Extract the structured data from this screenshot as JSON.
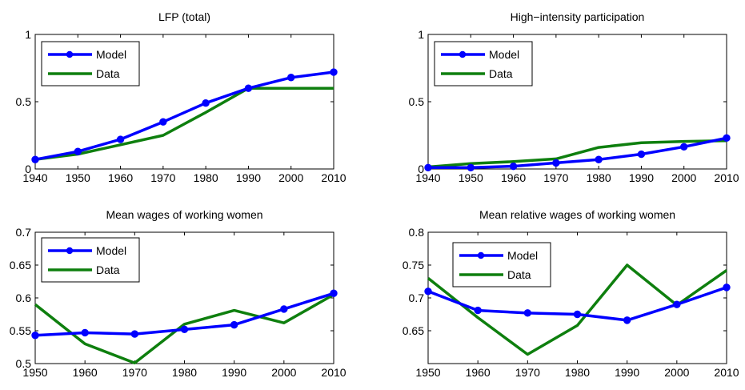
{
  "colors": {
    "model": "#0000ff",
    "data": "#0e7f0e",
    "axis": "#000000",
    "background": "#ffffff"
  },
  "legend": {
    "model_label": "Model",
    "data_label": "Data"
  },
  "chart_data": [
    {
      "type": "line",
      "title": "LFP (total)",
      "x": [
        1940,
        1950,
        1960,
        1970,
        1980,
        1990,
        2000,
        2010
      ],
      "xlim": [
        1940,
        2010
      ],
      "ylim": [
        0,
        1
      ],
      "xticks": [
        "1940",
        "1950",
        "1960",
        "1970",
        "1980",
        "1990",
        "2000",
        "2010"
      ],
      "xtick_values": [
        1940,
        1950,
        1960,
        1970,
        1980,
        1990,
        2000,
        2010
      ],
      "yticks": [
        "0",
        "0.5",
        "1"
      ],
      "ytick_values": [
        0,
        0.5,
        1
      ],
      "legend_position": "top-left",
      "grid": false,
      "series": [
        {
          "name": "Model",
          "marker": true,
          "x": [
            1940,
            1950,
            1960,
            1970,
            1980,
            1990,
            2000,
            2010
          ],
          "values": [
            0.07,
            0.13,
            0.22,
            0.35,
            0.49,
            0.6,
            0.68,
            0.72
          ]
        },
        {
          "name": "Data",
          "marker": false,
          "x": [
            1940,
            1950,
            1960,
            1970,
            1980,
            1990,
            2000,
            2010
          ],
          "values": [
            0.07,
            0.11,
            0.18,
            0.25,
            0.42,
            0.6,
            0.6,
            0.6
          ]
        }
      ]
    },
    {
      "type": "line",
      "title": "High−intensity participation",
      "x": [
        1940,
        1950,
        1960,
        1970,
        1980,
        1990,
        2000,
        2010
      ],
      "xlim": [
        1940,
        2010
      ],
      "ylim": [
        0,
        1
      ],
      "xticks": [
        "1940",
        "1950",
        "1960",
        "1970",
        "1980",
        "1990",
        "2000",
        "2010"
      ],
      "xtick_values": [
        1940,
        1950,
        1960,
        1970,
        1980,
        1990,
        2000,
        2010
      ],
      "yticks": [
        "0",
        "0.5",
        "1"
      ],
      "ytick_values": [
        0,
        0.5,
        1
      ],
      "legend_position": "top-left",
      "grid": false,
      "series": [
        {
          "name": "Model",
          "marker": true,
          "x": [
            1940,
            1950,
            1960,
            1970,
            1980,
            1990,
            2000,
            2010
          ],
          "values": [
            0.01,
            0.01,
            0.02,
            0.045,
            0.07,
            0.11,
            0.165,
            0.23
          ]
        },
        {
          "name": "Data",
          "marker": false,
          "x": [
            1940,
            1950,
            1960,
            1970,
            1980,
            1990,
            2000,
            2010
          ],
          "values": [
            0.015,
            0.04,
            0.055,
            0.075,
            0.16,
            0.195,
            0.205,
            0.21
          ]
        }
      ]
    },
    {
      "type": "line",
      "title": "Mean wages of working women",
      "x": [
        1950,
        1960,
        1970,
        1980,
        1990,
        2000,
        2010
      ],
      "xlim": [
        1950,
        2010
      ],
      "ylim": [
        0.5,
        0.7
      ],
      "xticks": [
        "1950",
        "1960",
        "1970",
        "1980",
        "1990",
        "2000",
        "2010"
      ],
      "xtick_values": [
        1950,
        1960,
        1970,
        1980,
        1990,
        2000,
        2010
      ],
      "yticks": [
        "0.5",
        "0.55",
        "0.6",
        "0.65",
        "0.7"
      ],
      "ytick_values": [
        0.5,
        0.55,
        0.6,
        0.65,
        0.7
      ],
      "legend_position": "top-left",
      "grid": false,
      "series": [
        {
          "name": "Model",
          "marker": true,
          "x": [
            1950,
            1960,
            1970,
            1980,
            1990,
            2000,
            2010
          ],
          "values": [
            0.543,
            0.547,
            0.545,
            0.552,
            0.559,
            0.583,
            0.607
          ]
        },
        {
          "name": "Data",
          "marker": false,
          "x": [
            1950,
            1960,
            1970,
            1980,
            1990,
            2000,
            2010
          ],
          "values": [
            0.59,
            0.53,
            0.501,
            0.56,
            0.581,
            0.562,
            0.605
          ]
        }
      ]
    },
    {
      "type": "line",
      "title": "Mean relative wages of working women",
      "x": [
        1950,
        1960,
        1970,
        1980,
        1990,
        2000,
        2010
      ],
      "xlim": [
        1950,
        2010
      ],
      "ylim": [
        0.6,
        0.8
      ],
      "xticks": [
        "1950",
        "1960",
        "1970",
        "1980",
        "1990",
        "2000",
        "2010"
      ],
      "xtick_values": [
        1950,
        1960,
        1970,
        1980,
        1990,
        2000,
        2010
      ],
      "yticks": [
        "0.65",
        "0.7",
        "0.75",
        "0.8"
      ],
      "ytick_values": [
        0.65,
        0.7,
        0.75,
        0.8
      ],
      "legend_position": "top-left",
      "grid": false,
      "series": [
        {
          "name": "Model",
          "marker": true,
          "x": [
            1950,
            1960,
            1970,
            1980,
            1990,
            2000,
            2010
          ],
          "values": [
            0.71,
            0.681,
            0.677,
            0.675,
            0.666,
            0.69,
            0.716
          ]
        },
        {
          "name": "Data",
          "marker": false,
          "x": [
            1950,
            1960,
            1970,
            1980,
            1990,
            2000,
            2010
          ],
          "values": [
            0.73,
            0.67,
            0.614,
            0.658,
            0.75,
            0.689,
            0.742
          ]
        }
      ]
    }
  ]
}
